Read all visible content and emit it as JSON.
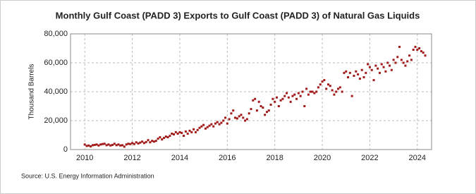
{
  "chart_data": {
    "type": "scatter",
    "title": "Monthly Gulf Coast (PADD 3) Exports to Gulf Coast (PADD 3) of Natural Gas Liquids",
    "y_label": "Thousand Barrels",
    "source": "Source: U.S. Energy Information Administration",
    "color": "#a11b1b",
    "grid": true,
    "xlim": [
      2009.4,
      2024.6
    ],
    "xticks": [
      2010,
      2012,
      2014,
      2016,
      2018,
      2020,
      2022,
      2024
    ],
    "ylim": [
      0,
      80000
    ],
    "yticks": [
      0,
      {
        "value": 20000,
        "label": "20,000"
      },
      {
        "value": 40000,
        "label": "40,000"
      },
      {
        "value": 60000,
        "label": "60,000"
      },
      {
        "value": 80000,
        "label": "80,000"
      }
    ],
    "x": [
      2010,
      2010.083,
      2010.167,
      2010.25,
      2010.333,
      2010.417,
      2010.5,
      2010.583,
      2010.667,
      2010.75,
      2010.833,
      2010.917,
      2011,
      2011.083,
      2011.167,
      2011.25,
      2011.333,
      2011.417,
      2011.5,
      2011.583,
      2011.667,
      2011.75,
      2011.833,
      2011.917,
      2012,
      2012.083,
      2012.167,
      2012.25,
      2012.333,
      2012.417,
      2012.5,
      2012.583,
      2012.667,
      2012.75,
      2012.833,
      2012.917,
      2013,
      2013.083,
      2013.167,
      2013.25,
      2013.333,
      2013.417,
      2013.5,
      2013.583,
      2013.667,
      2013.75,
      2013.833,
      2013.917,
      2014,
      2014.083,
      2014.167,
      2014.25,
      2014.333,
      2014.417,
      2014.5,
      2014.583,
      2014.667,
      2014.75,
      2014.833,
      2014.917,
      2015,
      2015.083,
      2015.167,
      2015.25,
      2015.333,
      2015.417,
      2015.5,
      2015.583,
      2015.667,
      2015.75,
      2015.833,
      2015.917,
      2016,
      2016.083,
      2016.167,
      2016.25,
      2016.333,
      2016.417,
      2016.5,
      2016.583,
      2016.667,
      2016.75,
      2016.833,
      2016.917,
      2017,
      2017.083,
      2017.167,
      2017.25,
      2017.333,
      2017.417,
      2017.5,
      2017.583,
      2017.667,
      2017.75,
      2017.833,
      2017.917,
      2018,
      2018.083,
      2018.167,
      2018.25,
      2018.333,
      2018.417,
      2018.5,
      2018.583,
      2018.667,
      2018.75,
      2018.833,
      2018.917,
      2019,
      2019.083,
      2019.167,
      2019.25,
      2019.333,
      2019.417,
      2019.5,
      2019.583,
      2019.667,
      2019.75,
      2019.833,
      2019.917,
      2020,
      2020.083,
      2020.167,
      2020.25,
      2020.333,
      2020.417,
      2020.5,
      2020.583,
      2020.667,
      2020.75,
      2020.833,
      2020.917,
      2021,
      2021.083,
      2021.167,
      2021.25,
      2021.333,
      2021.417,
      2021.5,
      2021.583,
      2021.667,
      2021.75,
      2021.833,
      2021.917,
      2022,
      2022.083,
      2022.167,
      2022.25,
      2022.333,
      2022.417,
      2022.5,
      2022.583,
      2022.667,
      2022.75,
      2022.833,
      2022.917,
      2023,
      2023.083,
      2023.167,
      2023.25,
      2023.333,
      2023.417,
      2023.5,
      2023.583,
      2023.667,
      2023.75,
      2023.833,
      2023.917,
      2024,
      2024.083,
      2024.167,
      2024.25,
      2024.333
    ],
    "values": [
      3500,
      2500,
      2800,
      2200,
      3000,
      3200,
      3500,
      2800,
      3500,
      3800,
      4000,
      3000,
      3500,
      2800,
      3200,
      4000,
      3000,
      3500,
      2800,
      3000,
      2000,
      3500,
      4000,
      3800,
      4500,
      3800,
      5000,
      4200,
      4800,
      5500,
      4500,
      5200,
      6500,
      5000,
      6000,
      5500,
      6000,
      7500,
      8500,
      7000,
      8000,
      9000,
      8500,
      9500,
      11000,
      10500,
      12000,
      11000,
      12000,
      11500,
      9500,
      12500,
      11000,
      13000,
      12000,
      14000,
      12000,
      13500,
      15000,
      16000,
      17000,
      14500,
      15500,
      16500,
      17500,
      16000,
      18000,
      19000,
      17500,
      18500,
      20000,
      22000,
      18000,
      21000,
      25000,
      27000,
      22000,
      21500,
      23000,
      24000,
      22000,
      20000,
      21000,
      25000,
      28000,
      34000,
      35000,
      27000,
      33000,
      30000,
      29000,
      24000,
      26000,
      27000,
      31000,
      35000,
      33000,
      36000,
      30000,
      34000,
      35000,
      37000,
      39000,
      36000,
      33000,
      37000,
      38000,
      35000,
      39000,
      37000,
      40000,
      30000,
      42000,
      38000,
      40000,
      40000,
      39000,
      40000,
      43000,
      45000,
      47000,
      48000,
      42000,
      45000,
      44000,
      41000,
      38000,
      40000,
      42000,
      43000,
      40000,
      53000,
      54000,
      50000,
      53000,
      37000,
      51000,
      54000,
      52000,
      49000,
      55000,
      50000,
      53000,
      59000,
      57000,
      55000,
      48000,
      58000,
      56000,
      53000,
      59000,
      57000,
      54000,
      60000,
      58000,
      55000,
      62000,
      60000,
      64000,
      71000,
      62000,
      60000,
      58000,
      61000,
      65000,
      62000,
      69000,
      71000,
      69000,
      70000,
      68000,
      67000,
      65000
    ]
  }
}
